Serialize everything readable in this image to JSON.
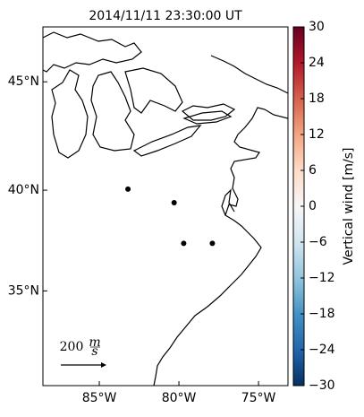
{
  "chart_data": {
    "type": "map",
    "title": "2014/11/11 23:30:00 UT",
    "xlim": [
      -88.54,
      -73.15
    ],
    "ylim": [
      30.0,
      47.38
    ],
    "xticks": [
      {
        "value": -85,
        "label": "85°W"
      },
      {
        "value": -80,
        "label": "80°W"
      },
      {
        "value": -75,
        "label": "75°W"
      }
    ],
    "yticks": [
      {
        "value": 35,
        "label": "35°N"
      },
      {
        "value": 40,
        "label": "40°N"
      },
      {
        "value": 45,
        "label": "45°N"
      }
    ],
    "points": {
      "x": [
        -83.2,
        -80.3,
        -79.7,
        -77.9
      ],
      "y": [
        40.05,
        39.4,
        37.4,
        37.4
      ],
      "color": "#000000"
    },
    "colorbar": {
      "label": "Vertical wind [m/s]",
      "lim": [
        -30,
        30
      ],
      "ticks": [
        30,
        24,
        18,
        12,
        6,
        0,
        {
          "value": -6,
          "label": "−6"
        },
        {
          "value": -12,
          "label": "−12"
        },
        {
          "value": -18,
          "label": "−18"
        },
        {
          "value": -24,
          "label": "−24"
        },
        {
          "value": -30,
          "label": "−30"
        }
      ],
      "colors": [
        "#053061",
        "#2166ac",
        "#4393c3",
        "#92c5de",
        "#d1e5f0",
        "#f7f7f7",
        "#fddbc7",
        "#f4a582",
        "#d6604d",
        "#b2182b",
        "#67001f"
      ]
    },
    "quiver_key": {
      "value": "200",
      "unit_top": "m",
      "unit_bottom": "s"
    }
  }
}
